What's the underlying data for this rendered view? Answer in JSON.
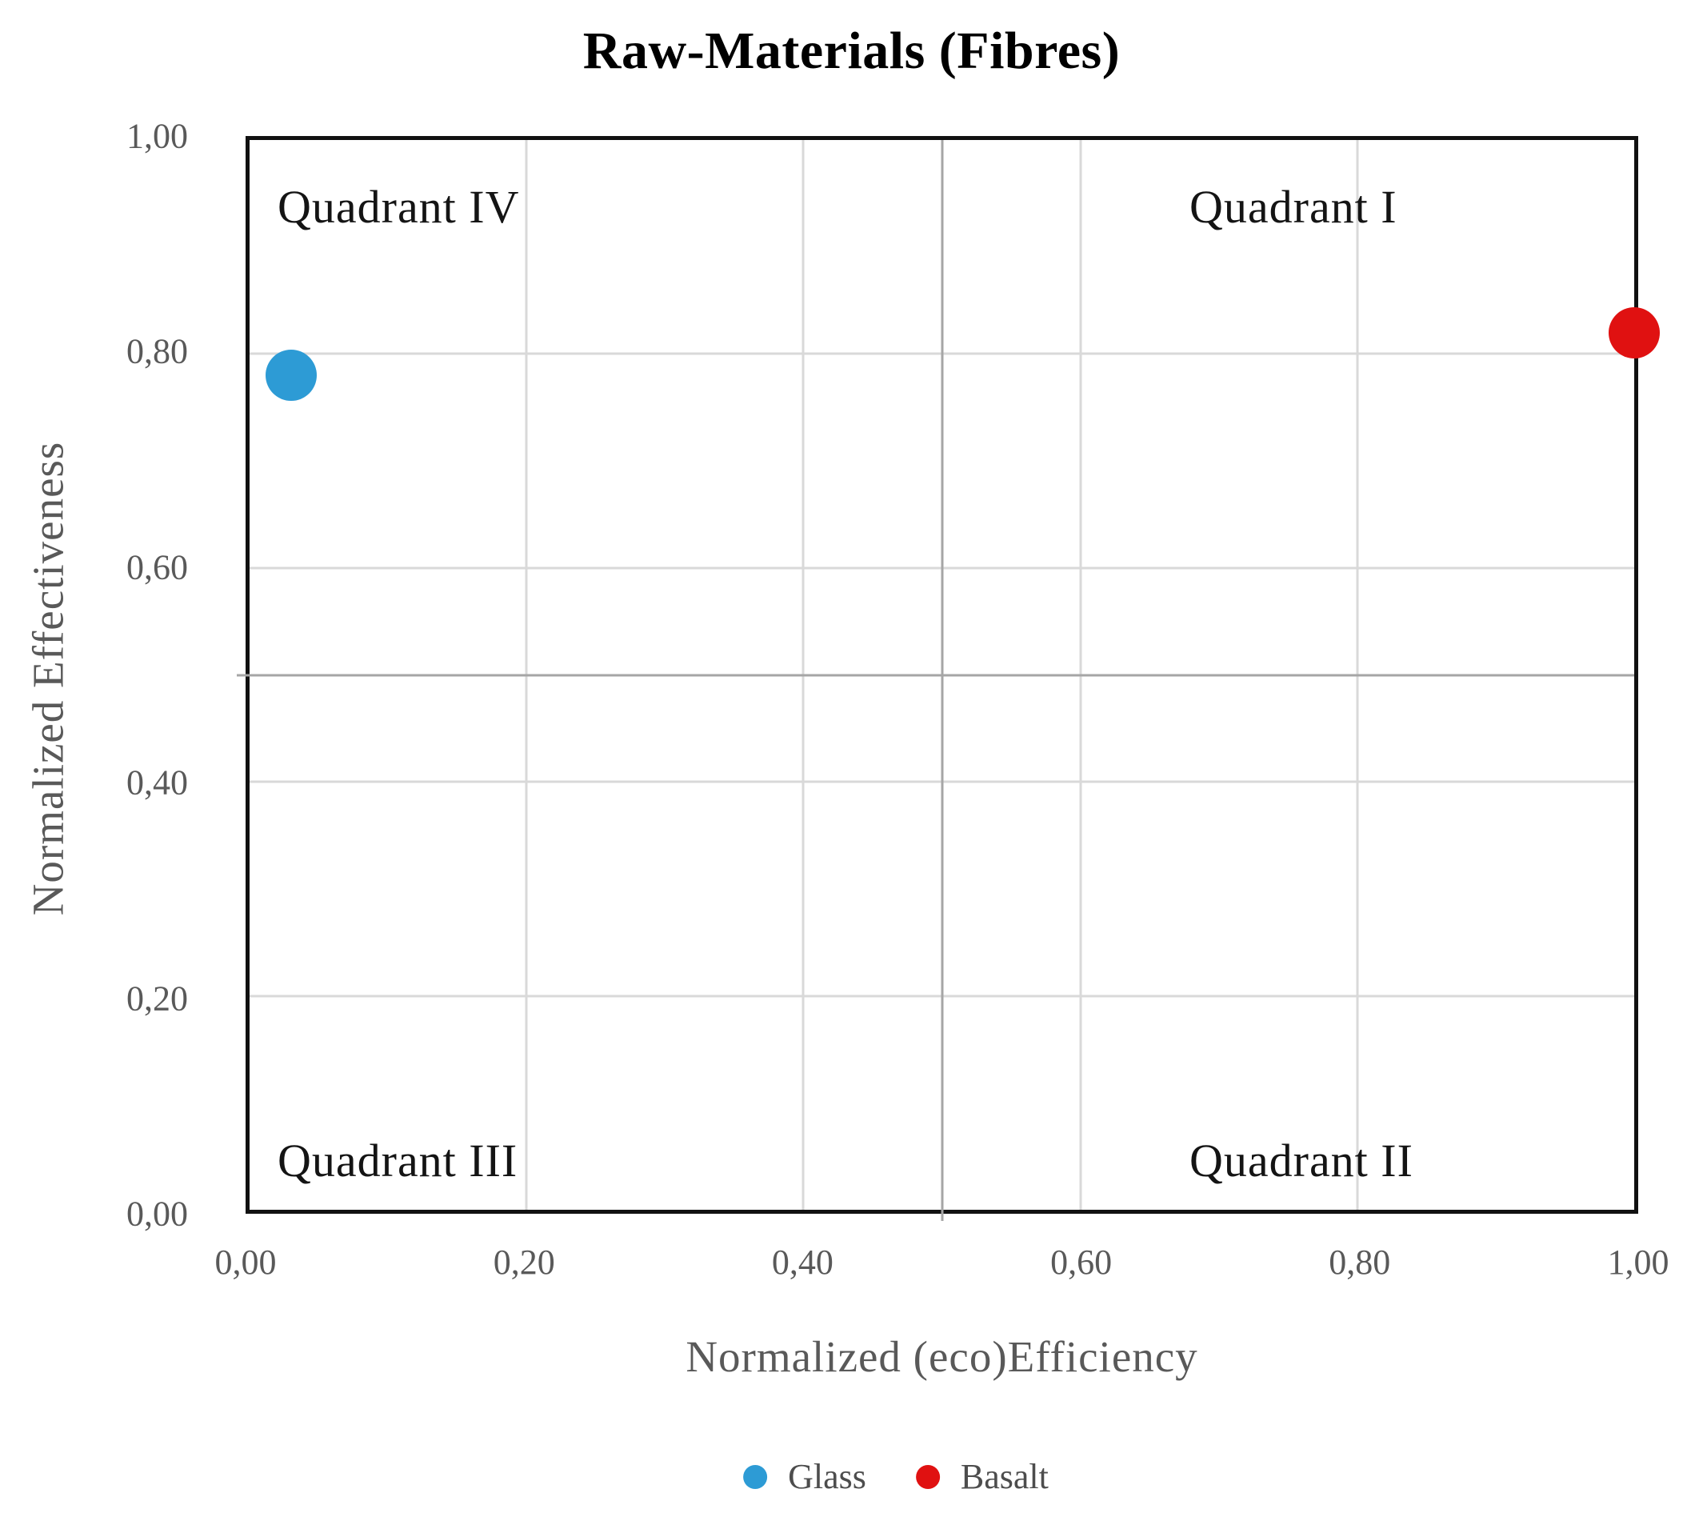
{
  "title": "Raw-Materials (Fibres)",
  "x_axis": {
    "label": "Normalized (eco)Efficiency",
    "ticks": [
      "0,00",
      "0,20",
      "0,40",
      "0,60",
      "0,80",
      "1,00"
    ]
  },
  "y_axis": {
    "label": "Normalized Effectiveness",
    "ticks": [
      "1,00",
      "0,80",
      "0,60",
      "0,40",
      "0,20",
      "0,00"
    ]
  },
  "quadrant_labels": {
    "top_left": "Quadrant IV",
    "top_right": "Quadrant I",
    "bottom_left": "Quadrant III",
    "bottom_right": "Quadrant II"
  },
  "legend": {
    "items": [
      {
        "label": "Glass",
        "color": "#2D9BD5"
      },
      {
        "label": "Basalt",
        "color": "#E01111"
      }
    ]
  },
  "colors": {
    "grid_light": "#D9D9D9",
    "grid_divider": "#A6A6A6",
    "axis_text": "#595959",
    "plot_border": "#111111"
  },
  "chart_data": {
    "type": "scatter",
    "title": "Raw-Materials (Fibres)",
    "xlabel": "Normalized (eco)Efficiency",
    "ylabel": "Normalized Effectiveness",
    "xlim": [
      0,
      1
    ],
    "ylim": [
      0,
      1
    ],
    "x_tick_values": [
      0.0,
      0.2,
      0.4,
      0.6,
      0.8,
      1.0
    ],
    "y_tick_values": [
      0.0,
      0.2,
      0.4,
      0.6,
      0.8,
      1.0
    ],
    "decimal_separator": ",",
    "grid": true,
    "quadrant_divider_at": 0.5,
    "legend_position": "bottom",
    "series": [
      {
        "name": "Glass",
        "color": "#2D9BD5",
        "points": [
          {
            "x": 0.03,
            "y": 0.78
          }
        ]
      },
      {
        "name": "Basalt",
        "color": "#E01111",
        "points": [
          {
            "x": 1.0,
            "y": 0.82
          }
        ]
      }
    ],
    "annotations": [
      {
        "text": "Quadrant IV",
        "position": "top-left"
      },
      {
        "text": "Quadrant I",
        "position": "top-right"
      },
      {
        "text": "Quadrant III",
        "position": "bottom-left"
      },
      {
        "text": "Quadrant II",
        "position": "bottom-right"
      }
    ]
  }
}
